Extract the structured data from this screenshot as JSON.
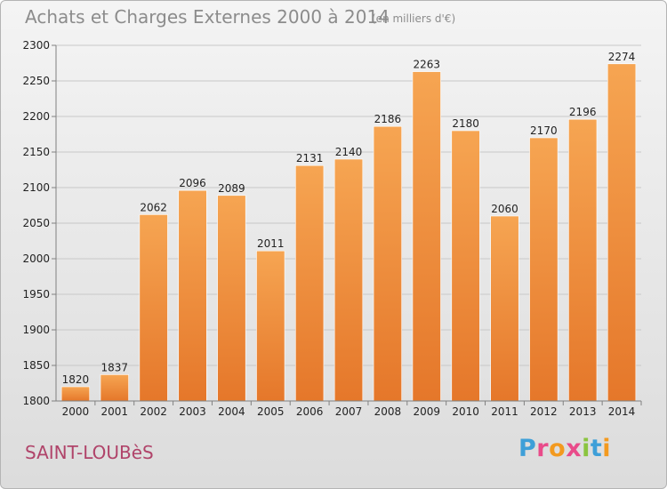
{
  "header": {
    "title": "Achats et Charges Externes 2000 à 2014",
    "unit": "(en milliers d'€)"
  },
  "footer": {
    "town": "SAINT-LOUBèS",
    "logo_letters": [
      "P",
      "r",
      "o",
      "x",
      "i",
      "t",
      "i"
    ],
    "logo_colors": [
      "#3e9fd8",
      "#e94b8a",
      "#f39a1f",
      "#e94b8a",
      "#8bc43f",
      "#3e9fd8",
      "#f39a1f"
    ]
  },
  "colors": {
    "bar_light": "#f6a552",
    "bar_dark": "#e5772a",
    "grid": "#c8c8c8",
    "axis": "#808080",
    "text": "#222222"
  },
  "chart_data": {
    "type": "bar",
    "title": "Achats et Charges Externes 2000 à 2014",
    "xlabel": "",
    "ylabel": "",
    "categories": [
      "2000",
      "2001",
      "2002",
      "2003",
      "2004",
      "2005",
      "2006",
      "2007",
      "2008",
      "2009",
      "2010",
      "2011",
      "2012",
      "2013",
      "2014"
    ],
    "values": [
      1820,
      1837,
      2062,
      2096,
      2089,
      2011,
      2131,
      2140,
      2186,
      2263,
      2180,
      2060,
      2170,
      2196,
      2274
    ],
    "ylim": [
      1800,
      2300
    ],
    "yticks": [
      1800,
      1850,
      1900,
      1950,
      2000,
      2050,
      2100,
      2150,
      2200,
      2250,
      2300
    ],
    "grid": true,
    "legend": "none"
  }
}
